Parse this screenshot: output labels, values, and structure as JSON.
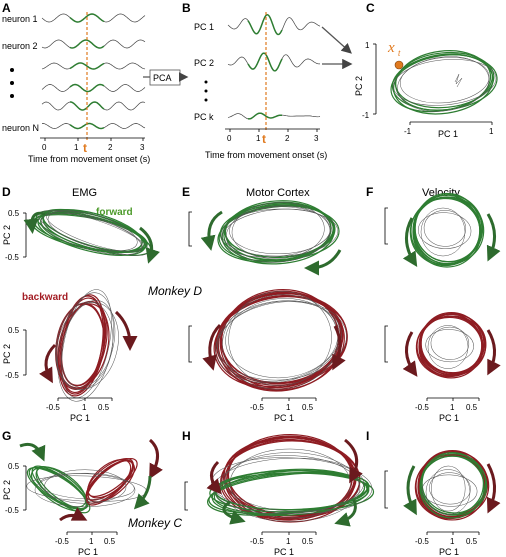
{
  "panels": [
    "A",
    "B",
    "C",
    "D",
    "E",
    "F",
    "G",
    "H",
    "I"
  ],
  "panel_a": {
    "neurons": [
      "neuron 1",
      "neuron 2",
      "neuron N"
    ],
    "xlabel": "Time from movement onset (s)",
    "ticks": [
      "0",
      "1",
      "2",
      "3"
    ],
    "tmark": "t"
  },
  "pca_label": "PCA",
  "panel_b": {
    "pcs": [
      "PC 1",
      "PC 2",
      "PC k"
    ],
    "xlabel": "Time from movement onset (s)",
    "ticks": [
      "0",
      "1",
      "2",
      "3"
    ],
    "tmark": "t"
  },
  "panel_c": {
    "xt": "x",
    "xt_sub": "t",
    "ylabel": "PC 2",
    "xlabel": "PC 1",
    "yticks": [
      "1",
      "-1"
    ],
    "xticks": [
      "-1",
      "1"
    ]
  },
  "columns": {
    "emg": "EMG",
    "motor": "Motor Cortex",
    "velocity": "Velocity"
  },
  "legend": {
    "forward": "forward",
    "backward": "backward"
  },
  "monkeys": {
    "d": "Monkey D",
    "c": "Monkey C"
  },
  "emg_axes": {
    "ylabel": "PC 2",
    "xlabel": "PC 1",
    "yticks": [
      "0.5",
      "-0.5"
    ],
    "xticks": [
      "-0.5",
      "1",
      "0.5"
    ]
  },
  "colors": {
    "forward": "#2e7d32",
    "backward": "#8e1c22",
    "marker": "#e07a1f"
  },
  "icons": [
    "arrow-right-icon"
  ]
}
